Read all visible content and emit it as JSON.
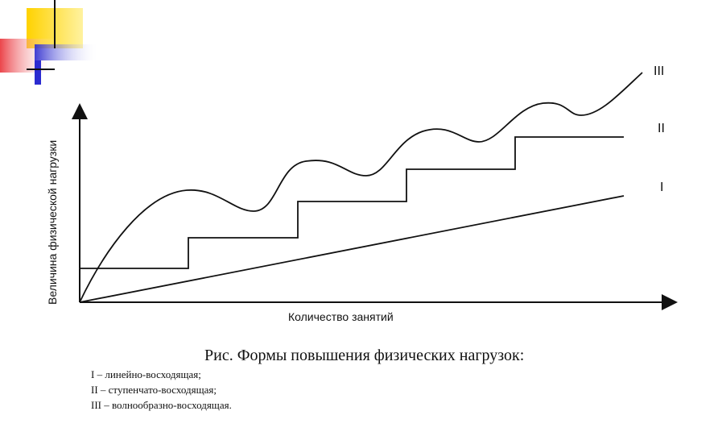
{
  "decoration": {
    "colors": {
      "yellow": "#ffd200",
      "red": "#e8242b",
      "blue": "#2b2bd0",
      "black": "#111111"
    }
  },
  "diagram": {
    "y_axis_label": "Величина физической нагрузки",
    "x_axis_label": "Количество занятий",
    "series_labels": {
      "linear": "I",
      "stepped": "II",
      "wave": "III"
    },
    "line_color": "#111111"
  },
  "caption": {
    "title": "Рис. Формы повышения физических нагрузок:",
    "items": [
      "I – линейно-восходящая;",
      "II – ступенчато-восходящая;",
      "III – волнообразно-восходящая."
    ]
  }
}
